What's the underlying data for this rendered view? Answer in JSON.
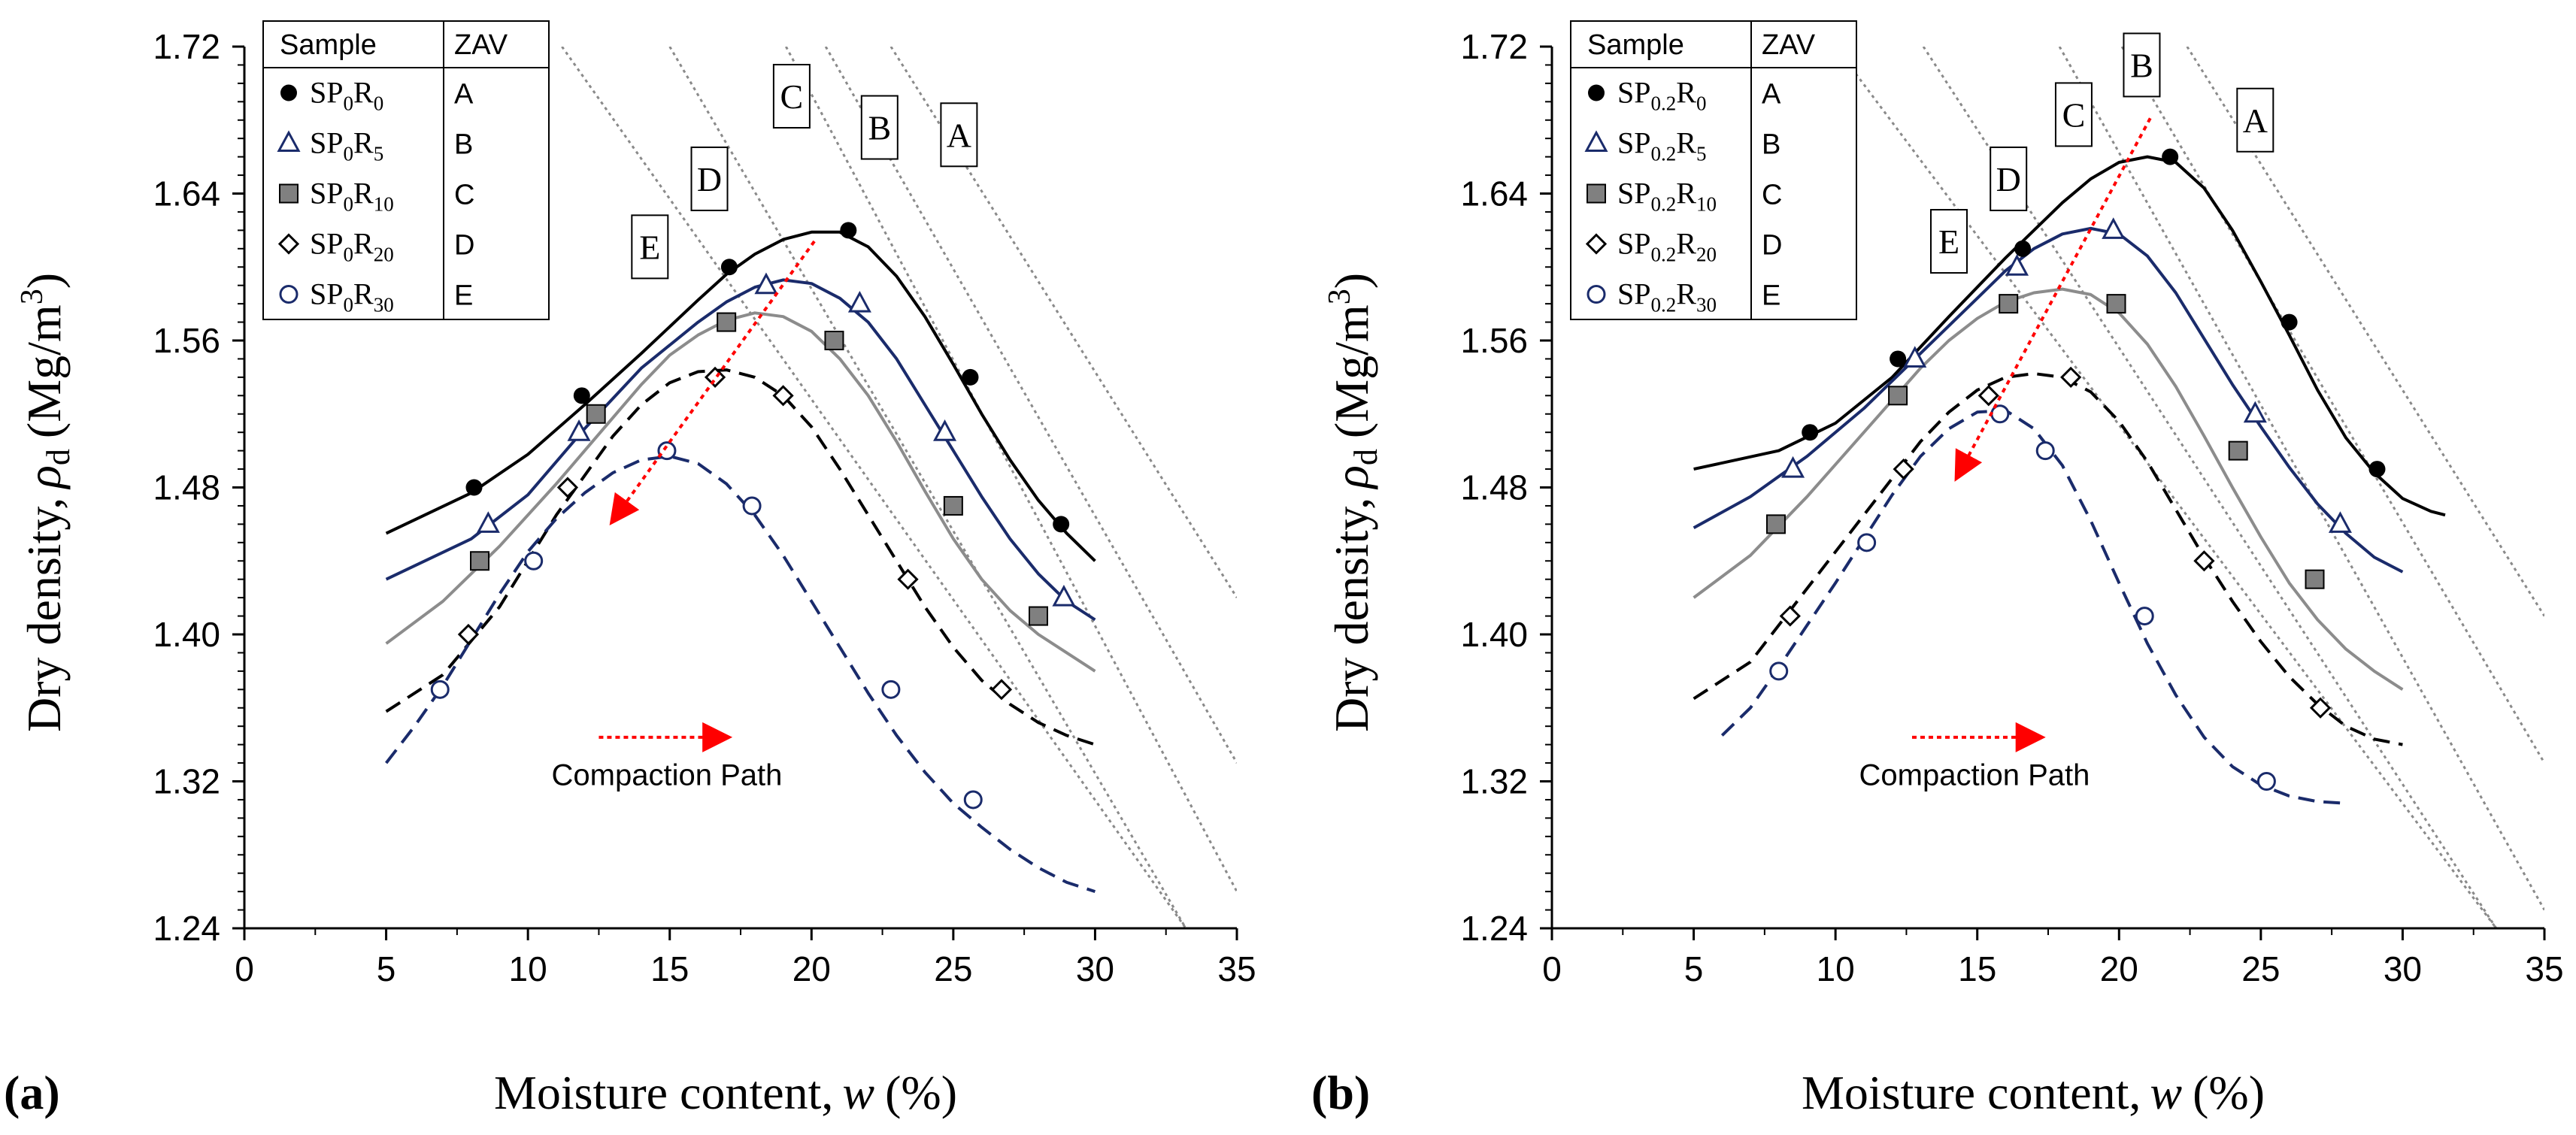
{
  "colors": {
    "black": "#000000",
    "navy": "#1a2b6b",
    "gray": "#8c8c8c",
    "marker_gray": "#808080",
    "zav": "#8a8a8a",
    "arrow": "#ff0000"
  },
  "chart_data": [
    {
      "panel_label": "(a)",
      "type": "line",
      "xlabel": "Moisture content, w (%)",
      "xlabel_main": "Moisture content,",
      "xlabel_var": "w",
      "xlabel_unit": "(%)",
      "ylabel": "Dry density, ρd (Mg/m3)",
      "ylabel_main": "Dry density,",
      "ylabel_var": "ρ",
      "ylabel_sub": "d",
      "ylabel_unit": "(Mg/m",
      "ylabel_sup": "3",
      "ylabel_close": ")",
      "xlim": [
        0,
        35
      ],
      "ylim": [
        1.24,
        1.72
      ],
      "xticks": [
        "0",
        "5",
        "10",
        "15",
        "20",
        "25",
        "30",
        "35"
      ],
      "yticks": [
        "1.24",
        "1.32",
        "1.40",
        "1.48",
        "1.56",
        "1.64",
        "1.72"
      ],
      "legend_header": [
        "Sample",
        "ZAV"
      ],
      "annotation": "Compaction Path",
      "series": [
        {
          "name": "SP0R0",
          "base": "SP",
          "sub1": "0",
          "mid": "R",
          "sub2": "0",
          "zav": "A",
          "marker": "filled-circle",
          "color": "black",
          "dash": "solid",
          "x": [
            8.1,
            11.9,
            17.1,
            21.3,
            25.6,
            28.8
          ],
          "y": [
            1.48,
            1.53,
            1.6,
            1.62,
            1.54,
            1.46
          ],
          "curve_x": [
            5,
            8,
            10,
            12,
            14,
            16,
            17,
            18,
            19,
            20,
            21,
            22,
            23,
            24,
            25,
            26,
            27,
            28,
            29,
            30
          ],
          "curve_y": [
            1.455,
            1.477,
            1.498,
            1.525,
            1.553,
            1.582,
            1.596,
            1.607,
            1.615,
            1.619,
            1.619,
            1.611,
            1.595,
            1.573,
            1.547,
            1.52,
            1.495,
            1.473,
            1.455,
            1.44
          ]
        },
        {
          "name": "SP0R5",
          "base": "SP",
          "sub1": "0",
          "mid": "R",
          "sub2": "5",
          "zav": "B",
          "marker": "open-triangle",
          "color": "navy",
          "dash": "solid",
          "x": [
            8.6,
            11.8,
            18.4,
            21.7,
            24.7,
            28.9
          ],
          "y": [
            1.46,
            1.51,
            1.59,
            1.58,
            1.51,
            1.42
          ],
          "curve_x": [
            5,
            8,
            10,
            12,
            14,
            16,
            17,
            18,
            19,
            20,
            21,
            22,
            23,
            24,
            25,
            26,
            27,
            28,
            29,
            30
          ],
          "curve_y": [
            1.43,
            1.452,
            1.476,
            1.512,
            1.545,
            1.57,
            1.581,
            1.589,
            1.593,
            1.591,
            1.583,
            1.57,
            1.55,
            1.525,
            1.5,
            1.475,
            1.452,
            1.433,
            1.418,
            1.408
          ]
        },
        {
          "name": "SP0R10",
          "base": "SP",
          "sub1": "0",
          "mid": "R",
          "sub2": "10",
          "zav": "C",
          "marker": "filled-square",
          "color": "gray",
          "dash": "solid",
          "x": [
            8.3,
            12.4,
            17.0,
            20.8,
            25.0,
            28.0
          ],
          "y": [
            1.44,
            1.52,
            1.57,
            1.56,
            1.47,
            1.41
          ],
          "curve_x": [
            5,
            7,
            9,
            11,
            12,
            13,
            14,
            15,
            16,
            17,
            18,
            19,
            20,
            21,
            22,
            23,
            24,
            25,
            26,
            27,
            28,
            29,
            30
          ],
          "curve_y": [
            1.395,
            1.418,
            1.448,
            1.482,
            1.5,
            1.518,
            1.536,
            1.552,
            1.563,
            1.571,
            1.575,
            1.573,
            1.565,
            1.55,
            1.53,
            1.505,
            1.478,
            1.452,
            1.43,
            1.413,
            1.4,
            1.39,
            1.38
          ]
        },
        {
          "name": "SP0R20",
          "base": "SP",
          "sub1": "0",
          "mid": "R",
          "sub2": "20",
          "zav": "D",
          "marker": "open-diamond",
          "color": "black",
          "dash": "dashed",
          "x": [
            7.9,
            11.4,
            16.6,
            19.0,
            23.4,
            26.7
          ],
          "y": [
            1.4,
            1.48,
            1.54,
            1.53,
            1.43,
            1.37
          ],
          "curve_x": [
            5,
            7,
            9,
            11,
            13,
            14,
            15,
            16,
            17,
            18,
            19,
            20,
            21,
            22,
            23,
            24,
            25,
            26,
            27,
            28,
            29,
            30
          ],
          "curve_y": [
            1.358,
            1.378,
            1.415,
            1.465,
            1.508,
            1.525,
            1.537,
            1.543,
            1.544,
            1.54,
            1.53,
            1.513,
            1.49,
            1.465,
            1.44,
            1.415,
            1.393,
            1.375,
            1.362,
            1.352,
            1.345,
            1.34
          ]
        },
        {
          "name": "SP0R30",
          "base": "SP",
          "sub1": "0",
          "mid": "R",
          "sub2": "30",
          "zav": "E",
          "marker": "open-circle",
          "color": "navy",
          "dash": "dashed",
          "x": [
            6.9,
            10.2,
            14.9,
            17.9,
            22.8,
            25.7
          ],
          "y": [
            1.37,
            1.44,
            1.5,
            1.47,
            1.37,
            1.31
          ],
          "curve_x": [
            5,
            6,
            7,
            8,
            9,
            10,
            11,
            12,
            13,
            14,
            15,
            16,
            17,
            18,
            19,
            20,
            21,
            22,
            23,
            24,
            25,
            26,
            27,
            28,
            29,
            30
          ],
          "curve_y": [
            1.33,
            1.35,
            1.372,
            1.397,
            1.422,
            1.445,
            1.463,
            1.477,
            1.488,
            1.495,
            1.497,
            1.493,
            1.482,
            1.465,
            1.443,
            1.418,
            1.393,
            1.368,
            1.345,
            1.325,
            1.308,
            1.295,
            1.283,
            1.273,
            1.265,
            1.26
          ]
        }
      ],
      "zav_lines": [
        {
          "label": "A",
          "x1": 22.8,
          "y1": 1.72,
          "x2": 35,
          "y2": 1.42
        },
        {
          "label": "B",
          "x1": 20.5,
          "y1": 1.72,
          "x2": 35,
          "y2": 1.33
        },
        {
          "label": "C",
          "x1": 19.1,
          "y1": 1.72,
          "x2": 35,
          "y2": 1.26
        },
        {
          "label": "D",
          "x1": 15.0,
          "y1": 1.72,
          "x2": 33.2,
          "y2": 1.24
        },
        {
          "label": "E",
          "x1": 11.2,
          "y1": 1.72,
          "x2": 33.2,
          "y2": 1.24
        }
      ],
      "zav_labels": [
        {
          "label": "A",
          "x": 25.2,
          "y": 1.672
        },
        {
          "label": "B",
          "x": 22.4,
          "y": 1.676
        },
        {
          "label": "C",
          "x": 19.3,
          "y": 1.693
        },
        {
          "label": "D",
          "x": 16.4,
          "y": 1.648
        },
        {
          "label": "E",
          "x": 14.3,
          "y": 1.611
        }
      ],
      "path_arrow": {
        "from": [
          20.1,
          1.614
        ],
        "to": [
          13.0,
          1.462
        ]
      },
      "small_arrow": {
        "from": [
          12.5,
          1.344
        ],
        "to": [
          17.0,
          1.344
        ]
      },
      "annotation_pos": [
        14.9,
        1.318
      ]
    },
    {
      "panel_label": "(b)",
      "type": "line",
      "xlabel": "Moisture content, w (%)",
      "xlabel_main": "Moisture content,",
      "xlabel_var": "w",
      "xlabel_unit": "(%)",
      "ylabel": "Dry density, ρd (Mg/m3)",
      "ylabel_main": "Dry density,",
      "ylabel_var": "ρ",
      "ylabel_sub": "d",
      "ylabel_unit": "(Mg/m",
      "ylabel_sup": "3",
      "ylabel_close": ")",
      "xlim": [
        0,
        35
      ],
      "ylim": [
        1.24,
        1.72
      ],
      "xticks": [
        "0",
        "5",
        "10",
        "15",
        "20",
        "25",
        "30",
        "35"
      ],
      "yticks": [
        "1.24",
        "1.32",
        "1.40",
        "1.48",
        "1.56",
        "1.64",
        "1.72"
      ],
      "legend_header": [
        "Sample",
        "ZAV"
      ],
      "annotation": "Compaction Path",
      "series": [
        {
          "name": "SP0.2R0",
          "base": "SP",
          "sub1": "0.2",
          "mid": "R",
          "sub2": "0",
          "zav": "A",
          "marker": "filled-circle",
          "color": "black",
          "dash": "solid",
          "x": [
            9.1,
            12.2,
            16.6,
            21.8,
            26.0,
            29.1
          ],
          "y": [
            1.51,
            1.55,
            1.61,
            1.66,
            1.57,
            1.49
          ],
          "curve_x": [
            5,
            8,
            10,
            12,
            14,
            16,
            18,
            19,
            20,
            21,
            22,
            23,
            24,
            25,
            26,
            27,
            28,
            29,
            30,
            31,
            31.5
          ],
          "curve_y": [
            1.49,
            1.5,
            1.515,
            1.54,
            1.573,
            1.605,
            1.635,
            1.648,
            1.657,
            1.66,
            1.657,
            1.643,
            1.62,
            1.592,
            1.563,
            1.533,
            1.507,
            1.488,
            1.474,
            1.467,
            1.465
          ]
        },
        {
          "name": "SP0.2R5",
          "base": "SP",
          "sub1": "0.2",
          "mid": "R",
          "sub2": "5",
          "zav": "B",
          "marker": "open-triangle",
          "color": "navy",
          "dash": "solid",
          "x": [
            8.5,
            12.8,
            16.4,
            19.8,
            24.8,
            27.8
          ],
          "y": [
            1.49,
            1.55,
            1.6,
            1.62,
            1.52,
            1.46
          ],
          "curve_x": [
            5,
            7,
            9,
            11,
            13,
            15,
            16,
            17,
            18,
            19,
            20,
            21,
            22,
            23,
            24,
            25,
            26,
            27,
            28,
            29,
            30
          ],
          "curve_y": [
            1.458,
            1.475,
            1.497,
            1.523,
            1.553,
            1.583,
            1.598,
            1.61,
            1.618,
            1.621,
            1.618,
            1.606,
            1.586,
            1.561,
            1.536,
            1.513,
            1.491,
            1.471,
            1.455,
            1.442,
            1.434
          ]
        },
        {
          "name": "SP0.2R10",
          "base": "SP",
          "sub1": "0.2",
          "mid": "R",
          "sub2": "10",
          "zav": "C",
          "marker": "filled-square",
          "color": "gray",
          "dash": "solid",
          "x": [
            7.9,
            12.2,
            16.1,
            19.9,
            24.2,
            26.9
          ],
          "y": [
            1.46,
            1.53,
            1.58,
            1.58,
            1.5,
            1.43
          ],
          "curve_x": [
            5,
            7,
            9,
            11,
            13,
            14,
            15,
            16,
            17,
            18,
            19,
            20,
            21,
            22,
            23,
            24,
            25,
            26,
            27,
            28,
            29,
            30
          ],
          "curve_y": [
            1.42,
            1.443,
            1.475,
            1.51,
            1.545,
            1.56,
            1.572,
            1.581,
            1.586,
            1.588,
            1.585,
            1.575,
            1.558,
            1.535,
            1.508,
            1.48,
            1.453,
            1.428,
            1.408,
            1.392,
            1.38,
            1.37
          ]
        },
        {
          "name": "SP0.2R20",
          "base": "SP",
          "sub1": "0.2",
          "mid": "R",
          "sub2": "20",
          "zav": "D",
          "marker": "open-diamond",
          "color": "black",
          "dash": "dashed",
          "x": [
            8.4,
            12.4,
            15.4,
            18.3,
            23.0,
            27.1
          ],
          "y": [
            1.41,
            1.49,
            1.53,
            1.54,
            1.44,
            1.36
          ],
          "curve_x": [
            5,
            7,
            9,
            11,
            12,
            13,
            14,
            15,
            16,
            17,
            18,
            19,
            20,
            21,
            22,
            23,
            24,
            25,
            26,
            27,
            28,
            29,
            30
          ],
          "curve_y": [
            1.365,
            1.385,
            1.425,
            1.465,
            1.485,
            1.505,
            1.521,
            1.533,
            1.54,
            1.542,
            1.54,
            1.532,
            1.516,
            1.494,
            1.468,
            1.442,
            1.418,
            1.396,
            1.377,
            1.362,
            1.35,
            1.343,
            1.34
          ]
        },
        {
          "name": "SP0.2R30",
          "base": "SP",
          "sub1": "0.2",
          "mid": "R",
          "sub2": "30",
          "zav": "E",
          "marker": "open-circle",
          "color": "navy",
          "dash": "dashed",
          "x": [
            8.0,
            11.1,
            15.8,
            17.4,
            20.9,
            25.2
          ],
          "y": [
            1.38,
            1.45,
            1.52,
            1.5,
            1.41,
            1.32
          ],
          "curve_x": [
            6,
            7,
            8,
            9,
            10,
            11,
            12,
            13,
            14,
            15,
            16,
            17,
            18,
            19,
            20,
            21,
            22,
            23,
            24,
            25,
            26,
            27,
            28
          ],
          "curve_y": [
            1.345,
            1.36,
            1.382,
            1.405,
            1.428,
            1.452,
            1.476,
            1.497,
            1.512,
            1.521,
            1.522,
            1.512,
            1.492,
            1.462,
            1.428,
            1.395,
            1.367,
            1.344,
            1.328,
            1.318,
            1.312,
            1.309,
            1.308
          ]
        }
      ],
      "zav_lines": [
        {
          "label": "A",
          "x1": 22.4,
          "y1": 1.72,
          "x2": 35,
          "y2": 1.41
        },
        {
          "label": "B",
          "x1": 20.1,
          "y1": 1.72,
          "x2": 35,
          "y2": 1.33
        },
        {
          "label": "C",
          "x1": 17.9,
          "y1": 1.72,
          "x2": 35,
          "y2": 1.25
        },
        {
          "label": "D",
          "x1": 13.1,
          "y1": 1.72,
          "x2": 33.3,
          "y2": 1.24
        },
        {
          "label": "E",
          "x1": 10.0,
          "y1": 1.72,
          "x2": 33.3,
          "y2": 1.24
        }
      ],
      "zav_labels": [
        {
          "label": "A",
          "x": 24.8,
          "y": 1.68
        },
        {
          "label": "B",
          "x": 20.8,
          "y": 1.71
        },
        {
          "label": "C",
          "x": 18.4,
          "y": 1.683
        },
        {
          "label": "D",
          "x": 16.1,
          "y": 1.648
        },
        {
          "label": "E",
          "x": 14.0,
          "y": 1.614
        }
      ],
      "path_arrow": {
        "from": [
          21.1,
          1.681
        ],
        "to": [
          14.3,
          1.486
        ]
      },
      "small_arrow": {
        "from": [
          12.7,
          1.344
        ],
        "to": [
          17.2,
          1.344
        ]
      },
      "annotation_pos": [
        14.9,
        1.318
      ]
    }
  ]
}
